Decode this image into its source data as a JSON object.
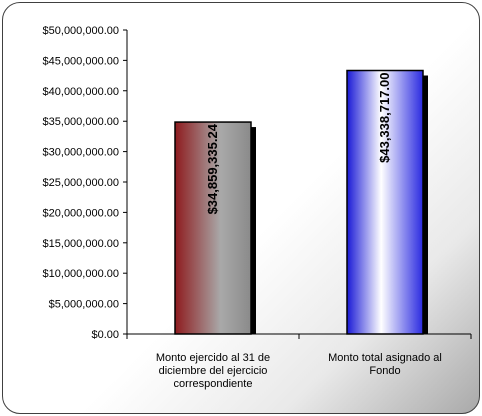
{
  "chart_data": {
    "type": "bar",
    "categories": [
      [
        "Monto ejercido al 31 de",
        "diciembre del ejercicio",
        "correspondiente"
      ],
      [
        "Monto total asignado al",
        "Fondo"
      ]
    ],
    "values": [
      34859335.24,
      43338717.0
    ],
    "data_labels": [
      "$34,859,335.24",
      "$43,338,717.00"
    ],
    "ylim": [
      0,
      50000000
    ],
    "yticks": [
      0,
      5000000,
      10000000,
      15000000,
      20000000,
      25000000,
      30000000,
      35000000,
      40000000,
      45000000,
      50000000
    ],
    "ytick_labels": [
      "$0.00",
      "$5,000,000.00",
      "$10,000,000.00",
      "$15,000,000.00",
      "$20,000,000.00",
      "$25,000,000.00",
      "$30,000,000.00",
      "$35,000,000.00",
      "$40,000,000.00",
      "$45,000,000.00",
      "$50,000,000.00"
    ],
    "grid": false,
    "legend": "none",
    "colors": [
      "#9b1f22",
      "#1f1fcf"
    ],
    "title": "",
    "xlabel": "",
    "ylabel": ""
  }
}
